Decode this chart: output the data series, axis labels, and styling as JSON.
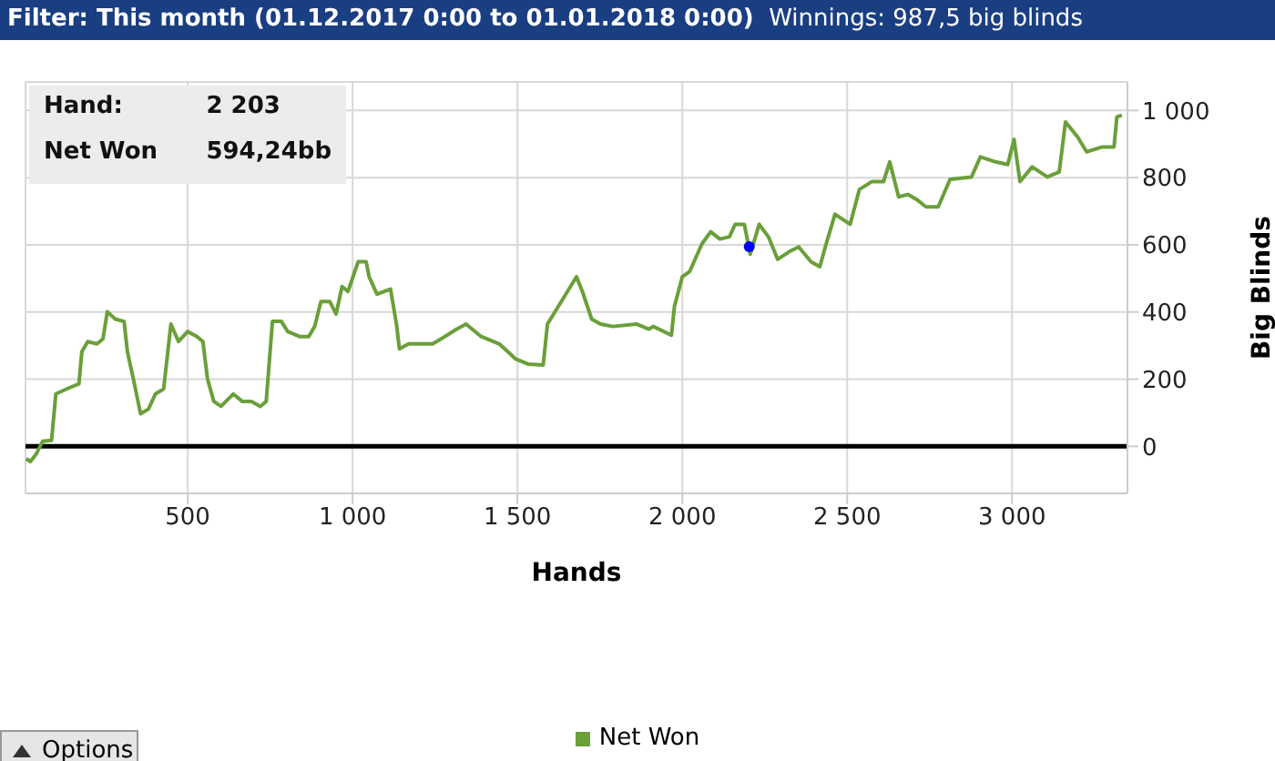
{
  "chart_data": {
    "type": "line",
    "title": "Filter: This month (01.12.2017 0:00 to 01.01.2018 0:00)",
    "subtitle": "Winnings: 987,5 big blinds",
    "xlabel": "Hands",
    "ylabel": "Big Blinds",
    "annotations": [
      "Hand:",
      "2 203",
      "Net Won",
      "594,24bb",
      "Options"
    ],
    "xlim": [
      8,
      3350
    ],
    "ylim": [
      -140,
      1085
    ],
    "xticks": [
      {
        "value": 500,
        "label": "500"
      },
      {
        "value": 1000,
        "label": "1 000"
      },
      {
        "value": 1500,
        "label": "1 500"
      },
      {
        "value": 2000,
        "label": "2 000"
      },
      {
        "value": 2500,
        "label": "2 500"
      },
      {
        "value": 3000,
        "label": "3 000"
      }
    ],
    "yticks": [
      0,
      200,
      400,
      600,
      800,
      {
        "value": 1000,
        "label": "1 000"
      }
    ],
    "grid": true,
    "legend": "bottom",
    "marker": "none",
    "line_style": "solid",
    "ref_lines": [
      {
        "axis": "y",
        "value": 0,
        "color": "#000000"
      }
    ],
    "series": [
      {
        "name": "Net Won",
        "color": "#6a9f3a",
        "x": [
          10,
          23,
          41,
          60,
          87,
          100,
          133,
          170,
          179,
          197,
          225,
          243,
          256,
          280,
          307,
          317,
          335,
          357,
          381,
          402,
          427,
          449,
          472,
          500,
          528,
          546,
          560,
          579,
          601,
          638,
          665,
          693,
          720,
          738,
          757,
          784,
          803,
          839,
          867,
          885,
          904,
          931,
          950,
          968,
          986,
          1017,
          1041,
          1050,
          1074,
          1115,
          1133,
          1142,
          1170,
          1206,
          1243,
          1280,
          1316,
          1344,
          1390,
          1445,
          1495,
          1532,
          1578,
          1591,
          1633,
          1679,
          1697,
          1725,
          1752,
          1789,
          1862,
          1899,
          1912,
          1967,
          1976,
          2000,
          2022,
          2059,
          2086,
          2114,
          2143,
          2160,
          2188,
          2206,
          2233,
          2261,
          2289,
          2325,
          2353,
          2390,
          2417,
          2436,
          2463,
          2509,
          2537,
          2574,
          2610,
          2629,
          2656,
          2684,
          2711,
          2739,
          2776,
          2812,
          2877,
          2904,
          2950,
          2987,
          3006,
          3024,
          3061,
          3107,
          3143,
          3162,
          3199,
          3226,
          3272,
          3309,
          3318,
          3333
        ],
        "values": [
          -37,
          -45,
          -22,
          15,
          18,
          156,
          171,
          186,
          282,
          312,
          305,
          320,
          401,
          379,
          372,
          282,
          201,
          97,
          111,
          156,
          171,
          364,
          312,
          342,
          327,
          312,
          201,
          134,
          119,
          156,
          134,
          134,
          119,
          134,
          372,
          372,
          342,
          327,
          327,
          357,
          431,
          431,
          394,
          476,
          461,
          550,
          550,
          505,
          453,
          468,
          364,
          290,
          305,
          305,
          305,
          327,
          349,
          364,
          327,
          305,
          260,
          245,
          242,
          364,
          431,
          505,
          461,
          379,
          364,
          357,
          364,
          349,
          357,
          331,
          416,
          505,
          520,
          602,
          639,
          617,
          624,
          661,
          661,
          572,
          661,
          624,
          557,
          580,
          594,
          550,
          535,
          602,
          691,
          661,
          765,
          788,
          788,
          847,
          743,
          750,
          735,
          713,
          713,
          795,
          802,
          862,
          847,
          839,
          914,
          788,
          832,
          802,
          817,
          966,
          921,
          877,
          891,
          891,
          981,
          986
        ]
      },
      {
        "type": "scatter",
        "color": "#0000ff",
        "marker": "circle",
        "x": [
          2203
        ],
        "values": [
          594.24
        ]
      }
    ]
  }
}
